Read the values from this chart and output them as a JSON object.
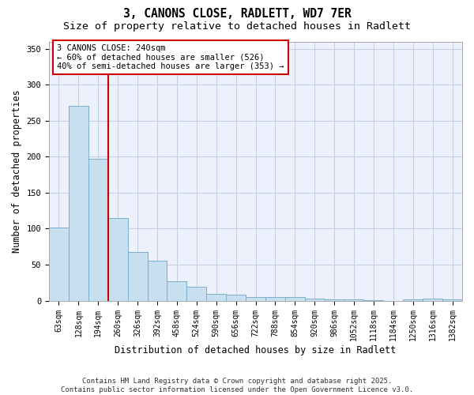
{
  "title1": "3, CANONS CLOSE, RADLETT, WD7 7ER",
  "title2": "Size of property relative to detached houses in Radlett",
  "xlabel": "Distribution of detached houses by size in Radlett",
  "ylabel": "Number of detached properties",
  "categories": [
    "63sqm",
    "128sqm",
    "194sqm",
    "260sqm",
    "326sqm",
    "392sqm",
    "458sqm",
    "524sqm",
    "590sqm",
    "656sqm",
    "722sqm",
    "788sqm",
    "854sqm",
    "920sqm",
    "986sqm",
    "1052sqm",
    "1118sqm",
    "1184sqm",
    "1250sqm",
    "1316sqm",
    "1382sqm"
  ],
  "values": [
    102,
    271,
    197,
    115,
    68,
    55,
    27,
    19,
    9,
    8,
    5,
    5,
    5,
    3,
    2,
    2,
    1,
    0,
    2,
    3,
    2
  ],
  "bar_color": "#c8dff0",
  "bar_edge_color": "#7aadcc",
  "vline_x": 2.5,
  "vline_color": "#cc0000",
  "annotation_line1": "3 CANONS CLOSE: 240sqm",
  "annotation_line2": "← 60% of detached houses are smaller (526)",
  "annotation_line3": "40% of semi-detached houses are larger (353) →",
  "ylim": [
    0,
    360
  ],
  "yticks": [
    0,
    50,
    100,
    150,
    200,
    250,
    300,
    350
  ],
  "footer": "Contains HM Land Registry data © Crown copyright and database right 2025.\nContains public sector information licensed under the Open Government Licence v3.0.",
  "bg_color": "#edf1fb",
  "grid_color": "#c5cfe8",
  "title1_fontsize": 10.5,
  "title2_fontsize": 9.5,
  "xlabel_fontsize": 8.5,
  "ylabel_fontsize": 8.5,
  "tick_fontsize": 7,
  "annot_fontsize": 7.5,
  "footer_fontsize": 6.5
}
